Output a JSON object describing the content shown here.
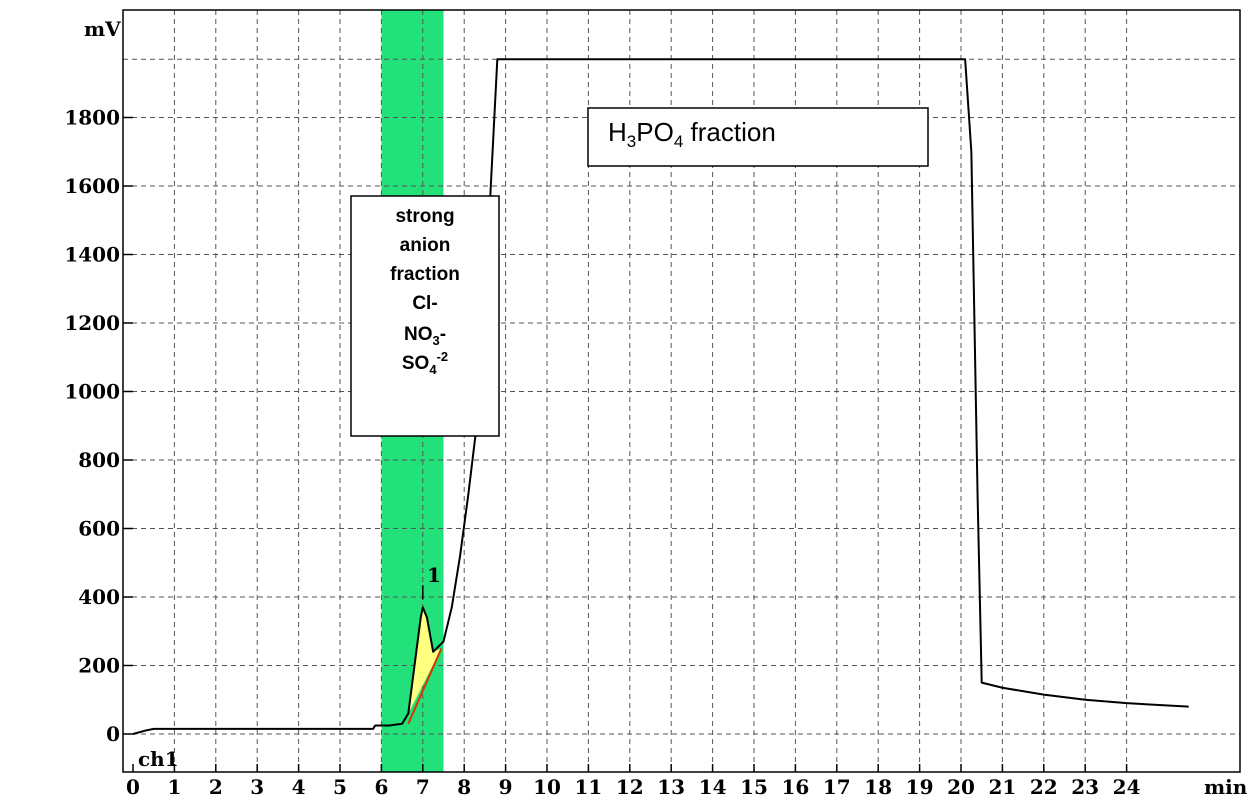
{
  "chart_data": {
    "type": "line",
    "ylabel": "mV",
    "xlabel": "min",
    "channel": "ch1",
    "xlim": [
      0,
      25.5
    ],
    "ylim": [
      -80,
      2080
    ],
    "x_ticks": [
      "0",
      "1",
      "2",
      "3",
      "4",
      "5",
      "6",
      "7",
      "8",
      "9",
      "10",
      "11",
      "12",
      "13",
      "14",
      "15",
      "16",
      "17",
      "18",
      "19",
      "20",
      "21",
      "22",
      "23",
      "24"
    ],
    "y_ticks": [
      "0",
      "200",
      "400",
      "600",
      "800",
      "1000",
      "1200",
      "1400",
      "1600",
      "1800"
    ],
    "grid": true,
    "highlight_band": {
      "x": [
        6.0,
        7.5
      ],
      "color": "#22e07a"
    },
    "series": [
      {
        "color": "#000000",
        "points": [
          [
            0.0,
            0
          ],
          [
            0.3,
            10
          ],
          [
            0.5,
            15
          ],
          [
            5.8,
            15
          ],
          [
            5.85,
            25
          ],
          [
            6.2,
            25
          ],
          [
            6.5,
            30
          ],
          [
            6.65,
            60
          ],
          [
            6.8,
            200
          ],
          [
            6.95,
            340
          ],
          [
            7.0,
            370
          ],
          [
            7.1,
            340
          ],
          [
            7.25,
            240
          ],
          [
            7.5,
            270
          ],
          [
            7.7,
            370
          ],
          [
            7.9,
            520
          ],
          [
            8.1,
            700
          ],
          [
            8.3,
            900
          ],
          [
            8.45,
            1150
          ],
          [
            8.6,
            1500
          ],
          [
            8.8,
            1970
          ],
          [
            20.1,
            1970
          ],
          [
            20.25,
            1700
          ],
          [
            20.4,
            700
          ],
          [
            20.5,
            150
          ],
          [
            21.0,
            135
          ],
          [
            22.0,
            115
          ],
          [
            23.0,
            100
          ],
          [
            24.0,
            90
          ],
          [
            25.5,
            80
          ]
        ]
      }
    ],
    "peaks": [
      {
        "label": "1",
        "apex": [
          7.0,
          370
        ],
        "fill_color": "#ffff80",
        "area": [
          [
            6.65,
            60
          ],
          [
            6.8,
            200
          ],
          [
            6.95,
            340
          ],
          [
            7.0,
            370
          ],
          [
            7.1,
            340
          ],
          [
            7.25,
            240
          ],
          [
            7.45,
            250
          ]
        ],
        "baseline": {
          "from": [
            6.65,
            30
          ],
          "to": [
            7.45,
            250
          ],
          "color": "#e03000"
        }
      }
    ],
    "annotations": [
      {
        "id": "strong-anion",
        "lines": [
          "strong",
          "anion",
          "fraction",
          "Cl-",
          "NO3-",
          "SO4-2"
        ]
      },
      {
        "id": "h3po4",
        "text": "H3PO4 fraction"
      }
    ]
  }
}
